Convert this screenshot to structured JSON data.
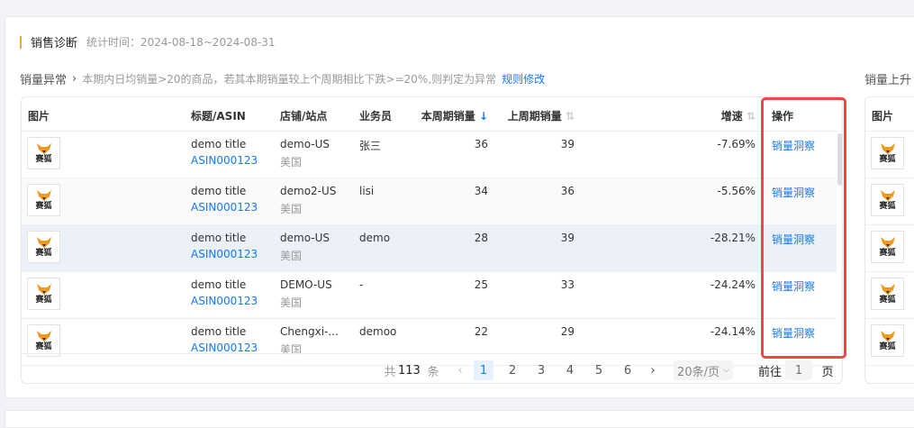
{
  "header": {
    "title": "销售诊断",
    "stat_time": "统计时间：2024-08-18~2024-08-31"
  },
  "section": {
    "heading": "销量异常",
    "chevron": "›",
    "description": "本期内日均销量>20的商品，若其本期销量较上个周期相比下跌>=20%,则判定为异常",
    "rule_link": "规则修改"
  },
  "right_section": {
    "heading": "销量上升",
    "col_image": "图片"
  },
  "columns": {
    "image": "图片",
    "title": "标题/ASIN",
    "store": "店铺/站点",
    "salesperson": "业务员",
    "current": "本周期销量",
    "previous": "上周期销量",
    "growth": "增速",
    "action": "操作"
  },
  "logo_text": "赛狐",
  "rows": [
    {
      "title": "demo title",
      "asin": "ASIN000123",
      "store": "demo-US",
      "site": "美国",
      "salesperson": "张三",
      "current": "36",
      "previous": "39",
      "growth": "-7.69%",
      "action": "销量洞察"
    },
    {
      "title": "demo title",
      "asin": "ASIN000123",
      "store": "demo2-US",
      "site": "美国",
      "salesperson": "lisi",
      "current": "34",
      "previous": "36",
      "growth": "-5.56%",
      "action": "销量洞察"
    },
    {
      "title": "demo title",
      "asin": "ASIN000123",
      "store": "demo-US",
      "site": "美国",
      "salesperson": "demo",
      "current": "28",
      "previous": "39",
      "growth": "-28.21%",
      "action": "销量洞察"
    },
    {
      "title": "demo title",
      "asin": "ASIN000123",
      "store": "DEMO-US",
      "site": "美国",
      "salesperson": "-",
      "current": "25",
      "previous": "33",
      "growth": "-24.24%",
      "action": "销量洞察"
    },
    {
      "title": "demo title",
      "asin": "ASIN000123",
      "store": "Chengxi-...",
      "site": "美国",
      "salesperson": "demoo",
      "current": "22",
      "previous": "29",
      "growth": "-24.14%",
      "action": "销量洞察"
    }
  ],
  "pagination": {
    "total_prefix": "共",
    "total": "113",
    "total_suffix": "条",
    "pages": [
      "1",
      "2",
      "3",
      "4",
      "5",
      "6"
    ],
    "current": "1",
    "page_size": "20条/页",
    "goto_label": "前往",
    "goto_value": "1",
    "goto_suffix": "页"
  },
  "colors": {
    "accent": "#1677ff",
    "highlight": "#f04646",
    "title_bar": "#f5a623"
  }
}
